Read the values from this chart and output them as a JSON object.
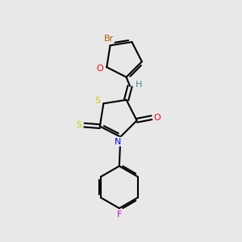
{
  "background_color": "#e8e8e8",
  "bond_color": "#000000",
  "bond_width": 1.5,
  "atom_colors": {
    "Br": "#b85c00",
    "O": "#ff0000",
    "S_thioxo": "#cccc00",
    "S_ring": "#cccc00",
    "N": "#0000ff",
    "F": "#cc00cc",
    "H": "#4a8a8a",
    "eq_O": "#ff0000"
  },
  "figsize": [
    3.0,
    3.0
  ],
  "dpi": 100
}
